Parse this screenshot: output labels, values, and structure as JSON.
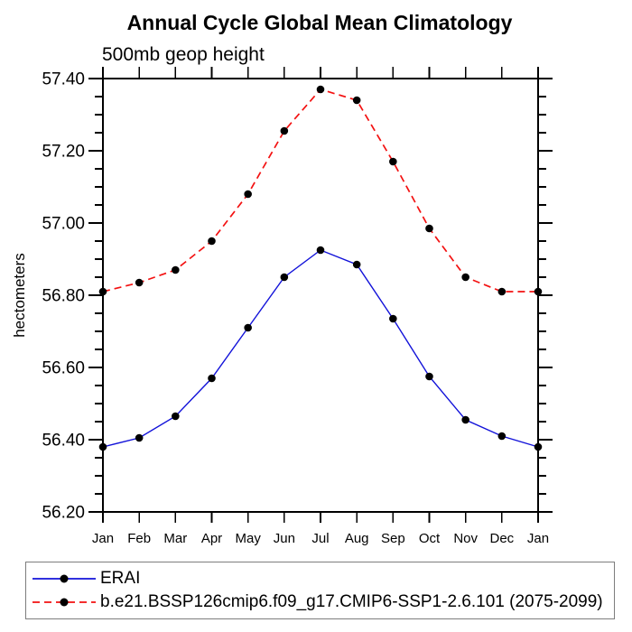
{
  "chart_data": {
    "type": "line",
    "title": "Annual Cycle Global Mean Climatology",
    "subtitle": "500mb geop height",
    "ylabel": "hectometers",
    "xlabel": "",
    "x_categories": [
      "Jan",
      "Feb",
      "Mar",
      "Apr",
      "May",
      "Jun",
      "Jul",
      "Aug",
      "Sep",
      "Oct",
      "Nov",
      "Dec",
      "Jan"
    ],
    "ylim": [
      56.2,
      57.4
    ],
    "ytick_labels": [
      "56.20",
      "56.40",
      "56.60",
      "56.80",
      "57.00",
      "57.20",
      "57.40"
    ],
    "ytick_major_step": 0.2,
    "ytick_minor_step": 0.05,
    "grid": false,
    "legend_position": "bottom",
    "axis_color": "#000000",
    "marker_color": "#000000",
    "series": [
      {
        "name": "ERAI",
        "color": "#1212d9",
        "line_style": "solid",
        "marker": "filled-circle",
        "values": [
          56.38,
          56.405,
          56.465,
          56.57,
          56.71,
          56.85,
          56.925,
          56.885,
          56.735,
          56.575,
          56.455,
          56.41,
          56.38
        ]
      },
      {
        "name": "b.e21.BSSP126cmip6.f09_g17.CMIP6-SSP1-2.6.101 (2075-2099)",
        "color": "#f31111",
        "line_style": "dashed",
        "marker": "filled-circle",
        "values": [
          56.81,
          56.835,
          56.87,
          56.95,
          57.08,
          57.255,
          57.37,
          57.34,
          57.17,
          56.985,
          56.85,
          56.81,
          56.81
        ]
      }
    ]
  }
}
